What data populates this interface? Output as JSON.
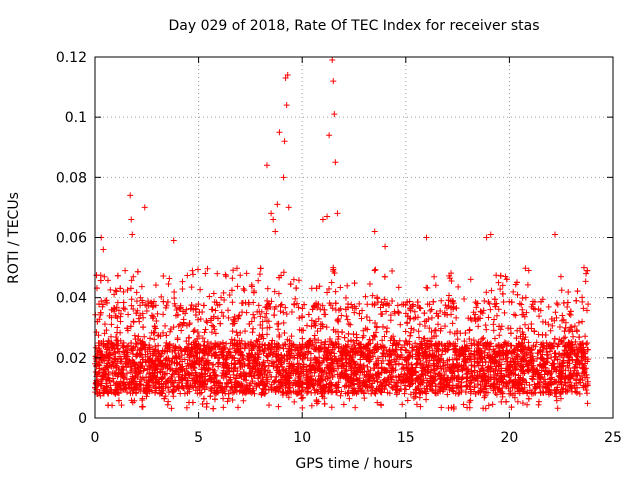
{
  "chart_data": {
    "type": "scatter",
    "title": "Day 029 of 2018, Rate Of TEC Index for receiver stas",
    "xlabel": "GPS time / hours",
    "ylabel": "ROTI / TECUs",
    "xlim": [
      0,
      25
    ],
    "ylim": [
      0,
      0.12
    ],
    "xticks": [
      0,
      5,
      10,
      15,
      20,
      25
    ],
    "xtick_labels": [
      "0",
      "5",
      "10",
      "15",
      "20",
      "25"
    ],
    "yticks": [
      0,
      0.02,
      0.04,
      0.06,
      0.08,
      0.1,
      0.12
    ],
    "ytick_labels": [
      "0",
      "0.02",
      "0.04",
      "0.06",
      "0.08",
      "0.1",
      "0.12"
    ],
    "grid": true,
    "marker": "+",
    "color": "#ff0000",
    "series": [
      {
        "name": "ROTI",
        "x_range": [
          0,
          23.8
        ],
        "typical_band": [
          0.008,
          0.025
        ],
        "notable_points": [
          {
            "x": 0.3,
            "y": 0.06
          },
          {
            "x": 0.4,
            "y": 0.056
          },
          {
            "x": 1.7,
            "y": 0.074
          },
          {
            "x": 1.75,
            "y": 0.066
          },
          {
            "x": 1.8,
            "y": 0.061
          },
          {
            "x": 2.4,
            "y": 0.07
          },
          {
            "x": 3.8,
            "y": 0.059
          },
          {
            "x": 4.7,
            "y": 0.049
          },
          {
            "x": 5.9,
            "y": 0.048
          },
          {
            "x": 8.3,
            "y": 0.084
          },
          {
            "x": 8.5,
            "y": 0.068
          },
          {
            "x": 8.6,
            "y": 0.066
          },
          {
            "x": 8.7,
            "y": 0.062
          },
          {
            "x": 8.8,
            "y": 0.071
          },
          {
            "x": 8.9,
            "y": 0.095
          },
          {
            "x": 9.1,
            "y": 0.08
          },
          {
            "x": 9.15,
            "y": 0.092
          },
          {
            "x": 9.2,
            "y": 0.113
          },
          {
            "x": 9.25,
            "y": 0.104
          },
          {
            "x": 9.3,
            "y": 0.114
          },
          {
            "x": 9.35,
            "y": 0.07
          },
          {
            "x": 11.0,
            "y": 0.066
          },
          {
            "x": 11.2,
            "y": 0.067
          },
          {
            "x": 11.3,
            "y": 0.094
          },
          {
            "x": 11.45,
            "y": 0.119
          },
          {
            "x": 11.5,
            "y": 0.112
          },
          {
            "x": 11.55,
            "y": 0.101
          },
          {
            "x": 11.6,
            "y": 0.085
          },
          {
            "x": 11.7,
            "y": 0.068
          },
          {
            "x": 13.5,
            "y": 0.062
          },
          {
            "x": 14.0,
            "y": 0.057
          },
          {
            "x": 16.0,
            "y": 0.06
          },
          {
            "x": 18.9,
            "y": 0.06
          },
          {
            "x": 19.1,
            "y": 0.061
          },
          {
            "x": 22.2,
            "y": 0.061
          },
          {
            "x": 23.6,
            "y": 0.05
          },
          {
            "x": 23.7,
            "y": 0.048
          }
        ]
      }
    ]
  }
}
